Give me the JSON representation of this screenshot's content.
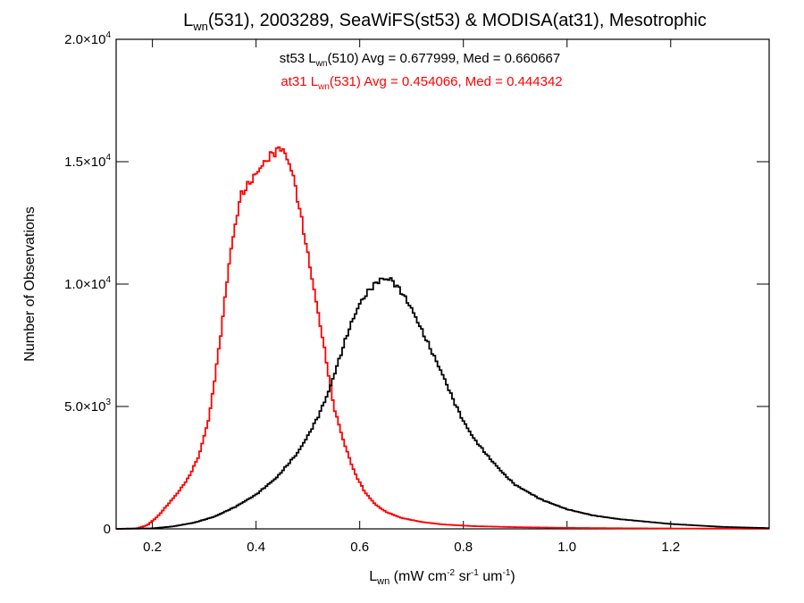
{
  "chart_data": {
    "type": "line",
    "title": {
      "base": "L",
      "sub": "wn",
      "rest": "(531), 2003289, SeaWiFS(st53) & MODISA(at31), Mesotrophic"
    },
    "xlabel": {
      "base": "L",
      "sub": "wn",
      "p1": " (mW cm",
      "sup1": "-2",
      "p2": " sr",
      "sup2": "-1",
      "p3": " um",
      "sup3": "-1",
      "p4": ")"
    },
    "ylabel": "Number of Observations",
    "xlim": [
      0.13,
      1.39
    ],
    "ylim": [
      0,
      20000
    ],
    "x_ticks": [
      {
        "value": 0.2,
        "label": "0.2"
      },
      {
        "value": 0.4,
        "label": "0.4"
      },
      {
        "value": 0.6,
        "label": "0.6"
      },
      {
        "value": 0.8,
        "label": "0.8"
      },
      {
        "value": 1.0,
        "label": "1.0"
      },
      {
        "value": 1.2,
        "label": "1.2"
      }
    ],
    "y_ticks": [
      {
        "value": 0,
        "mant": "0",
        "exp": ""
      },
      {
        "value": 5000,
        "mant": "5.0×10",
        "exp": "3"
      },
      {
        "value": 10000,
        "mant": "1.0×10",
        "exp": "4"
      },
      {
        "value": 15000,
        "mant": "1.5×10",
        "exp": "4"
      },
      {
        "value": 20000,
        "mant": "2.0×10",
        "exp": "4"
      }
    ],
    "annotations": [
      {
        "color": "#000000",
        "pre": "st53 L",
        "sub": "wn",
        "post": "(510) Avg = 0.677999, Med = 0.660667"
      },
      {
        "color": "#ff0000",
        "pre": "at31 L",
        "sub": "wn",
        "post": "(531) Avg = 0.454066, Med = 0.444342"
      }
    ],
    "series": [
      {
        "color": "#ff0000",
        "x": [
          0.13,
          0.17,
          0.19,
          0.21,
          0.23,
          0.25,
          0.27,
          0.29,
          0.31,
          0.33,
          0.35,
          0.37,
          0.39,
          0.41,
          0.43,
          0.45,
          0.47,
          0.49,
          0.51,
          0.53,
          0.55,
          0.57,
          0.59,
          0.61,
          0.63,
          0.65,
          0.68,
          0.72,
          0.76,
          0.82,
          0.9,
          1.0,
          1.1,
          1.2,
          1.3,
          1.39
        ],
        "values": [
          0,
          20,
          150,
          500,
          1000,
          1500,
          2100,
          3000,
          4600,
          7600,
          11200,
          13600,
          14200,
          14800,
          15300,
          15600,
          14600,
          12400,
          10000,
          7600,
          5000,
          3500,
          2300,
          1500,
          1000,
          700,
          450,
          280,
          180,
          110,
          70,
          40,
          25,
          15,
          10,
          5
        ]
      },
      {
        "color": "#000000",
        "x": [
          0.13,
          0.2,
          0.24,
          0.28,
          0.32,
          0.36,
          0.4,
          0.44,
          0.48,
          0.5,
          0.52,
          0.54,
          0.56,
          0.58,
          0.6,
          0.62,
          0.64,
          0.66,
          0.68,
          0.7,
          0.72,
          0.74,
          0.76,
          0.78,
          0.8,
          0.82,
          0.85,
          0.88,
          0.9,
          0.95,
          1.0,
          1.05,
          1.1,
          1.2,
          1.3,
          1.39
        ],
        "values": [
          0,
          20,
          100,
          250,
          500,
          900,
          1400,
          2100,
          3100,
          3800,
          4600,
          5600,
          6900,
          8200,
          9200,
          9800,
          10200,
          10200,
          9700,
          9000,
          8100,
          7200,
          6300,
          5300,
          4400,
          3700,
          2900,
          2200,
          1800,
          1200,
          800,
          550,
          400,
          200,
          80,
          30
        ]
      }
    ]
  }
}
